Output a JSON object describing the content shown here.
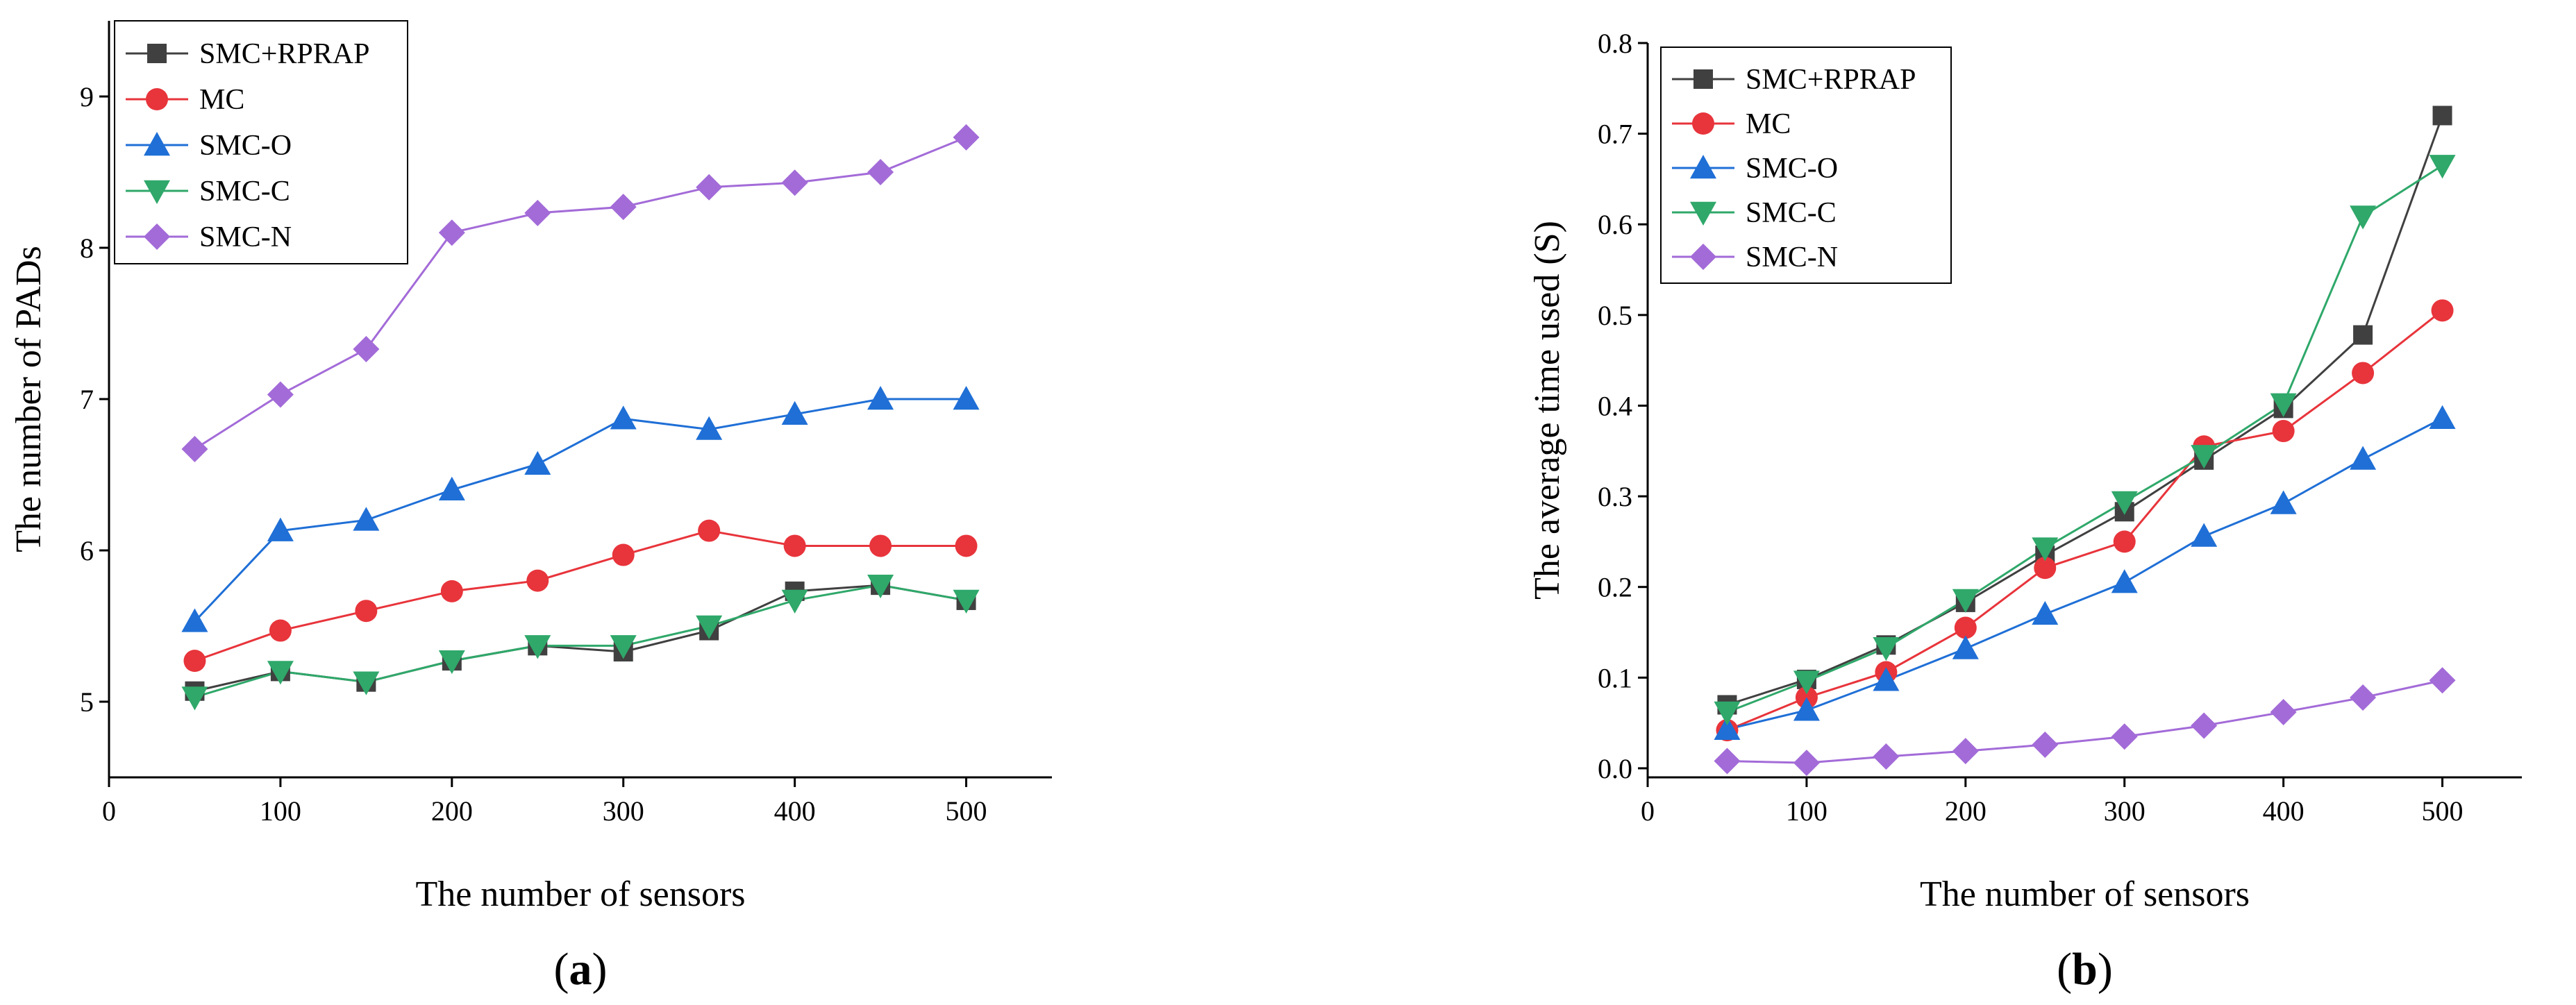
{
  "figure": {
    "colors": {
      "SMC+RPRAP": "#404040",
      "MC": "#e8343b",
      "SMC-O": "#1f6fd6",
      "SMC-C": "#2fa86a",
      "SMC-N": "#a36bd8"
    },
    "markers": {
      "SMC+RPRAP": "square",
      "MC": "circle",
      "SMC-O": "triangle-up",
      "SMC-C": "triangle-down",
      "SMC-N": "diamond"
    }
  },
  "chart_data": [
    {
      "type": "line",
      "panel_label": {
        "open": "(",
        "letter": "a",
        "close": ")"
      },
      "xlabel": "The number of sensors",
      "ylabel": "The number of PADs",
      "xlim": [
        0,
        550
      ],
      "ylim": [
        4.5,
        9.5
      ],
      "xticks": [
        0,
        100,
        200,
        300,
        400,
        500
      ],
      "yticks": [
        5,
        6,
        7,
        8,
        9
      ],
      "legend_position": "top-left",
      "x": [
        50,
        100,
        150,
        200,
        250,
        300,
        350,
        400,
        450,
        500
      ],
      "series": [
        {
          "name": "SMC+RPRAP",
          "values": [
            5.07,
            5.2,
            5.13,
            5.27,
            5.37,
            5.33,
            5.47,
            5.73,
            5.77,
            5.67
          ]
        },
        {
          "name": "MC",
          "values": [
            5.27,
            5.47,
            5.6,
            5.73,
            5.8,
            5.97,
            6.13,
            6.03,
            6.03,
            6.03
          ]
        },
        {
          "name": "SMC-O",
          "values": [
            5.53,
            6.13,
            6.2,
            6.4,
            6.57,
            6.87,
            6.8,
            6.9,
            7.0,
            7.0
          ]
        },
        {
          "name": "SMC-C",
          "values": [
            5.03,
            5.2,
            5.13,
            5.27,
            5.37,
            5.37,
            5.5,
            5.67,
            5.77,
            5.67
          ]
        },
        {
          "name": "SMC-N",
          "values": [
            6.67,
            7.03,
            7.33,
            8.1,
            8.23,
            8.27,
            8.4,
            8.43,
            8.5,
            8.73
          ]
        }
      ]
    },
    {
      "type": "line",
      "panel_label": {
        "open": "(",
        "letter": "b",
        "close": ")"
      },
      "xlabel": "The number of sensors",
      "ylabel": "The average time used (S)",
      "xlim": [
        0,
        550
      ],
      "ylim": [
        -0.01,
        0.8
      ],
      "xticks": [
        0,
        100,
        200,
        300,
        400,
        500
      ],
      "yticks": [
        "0.0",
        "0.1",
        "0.2",
        "0.3",
        "0.4",
        "0.5",
        "0.6",
        "0.7",
        "0.8"
      ],
      "legend_position": "top-left",
      "x": [
        50,
        100,
        150,
        200,
        250,
        300,
        350,
        400,
        450,
        500
      ],
      "series": [
        {
          "name": "SMC+RPRAP",
          "values": [
            0.07,
            0.098,
            0.136,
            0.183,
            0.235,
            0.283,
            0.34,
            0.397,
            0.478,
            0.72
          ]
        },
        {
          "name": "MC",
          "values": [
            0.042,
            0.078,
            0.106,
            0.155,
            0.221,
            0.25,
            0.355,
            0.372,
            0.436,
            0.505
          ]
        },
        {
          "name": "SMC-O",
          "values": [
            0.043,
            0.064,
            0.097,
            0.132,
            0.17,
            0.205,
            0.256,
            0.292,
            0.341,
            0.386
          ]
        },
        {
          "name": "SMC-C",
          "values": [
            0.062,
            0.096,
            0.133,
            0.186,
            0.243,
            0.294,
            0.345,
            0.402,
            0.609,
            0.665
          ]
        },
        {
          "name": "SMC-N",
          "values": [
            0.008,
            0.006,
            0.013,
            0.019,
            0.026,
            0.035,
            0.047,
            0.062,
            0.078,
            0.097
          ]
        }
      ]
    }
  ]
}
